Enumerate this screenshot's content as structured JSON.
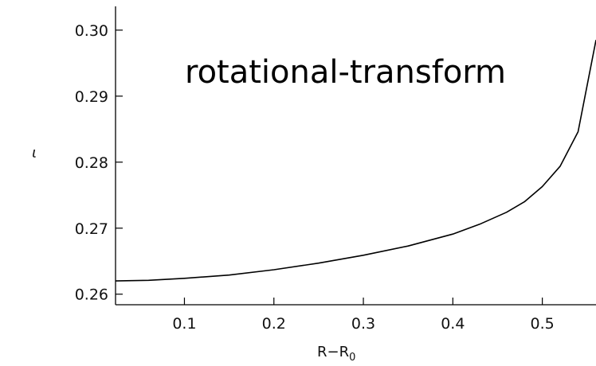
{
  "chart_data": {
    "type": "line",
    "annotation": "rotational-transform",
    "xlabel": "R−R",
    "xlabel_sub": "0",
    "ylabel": "ι",
    "xlim": [
      0.023,
      0.56
    ],
    "ylim": [
      0.2584,
      0.3036
    ],
    "xticks": [
      0.1,
      0.2,
      0.3,
      0.4,
      0.5
    ],
    "xtick_labels": [
      "0.1",
      "0.2",
      "0.3",
      "0.4",
      "0.5"
    ],
    "yticks": [
      0.26,
      0.27,
      0.28,
      0.29,
      0.3
    ],
    "ytick_labels": [
      "0.26",
      "0.27",
      "0.28",
      "0.29",
      "0.30"
    ],
    "grid": false,
    "line_color": "#000000",
    "series": [
      {
        "x": [
          0.023,
          0.06,
          0.1,
          0.15,
          0.2,
          0.25,
          0.3,
          0.35,
          0.4,
          0.43,
          0.46,
          0.48,
          0.5,
          0.52,
          0.54,
          0.56
        ],
        "y": [
          0.262,
          0.2621,
          0.2624,
          0.2629,
          0.2637,
          0.2647,
          0.2659,
          0.2673,
          0.2691,
          0.2706,
          0.2724,
          0.274,
          0.2763,
          0.2794,
          0.2846,
          0.2985
        ]
      }
    ]
  }
}
